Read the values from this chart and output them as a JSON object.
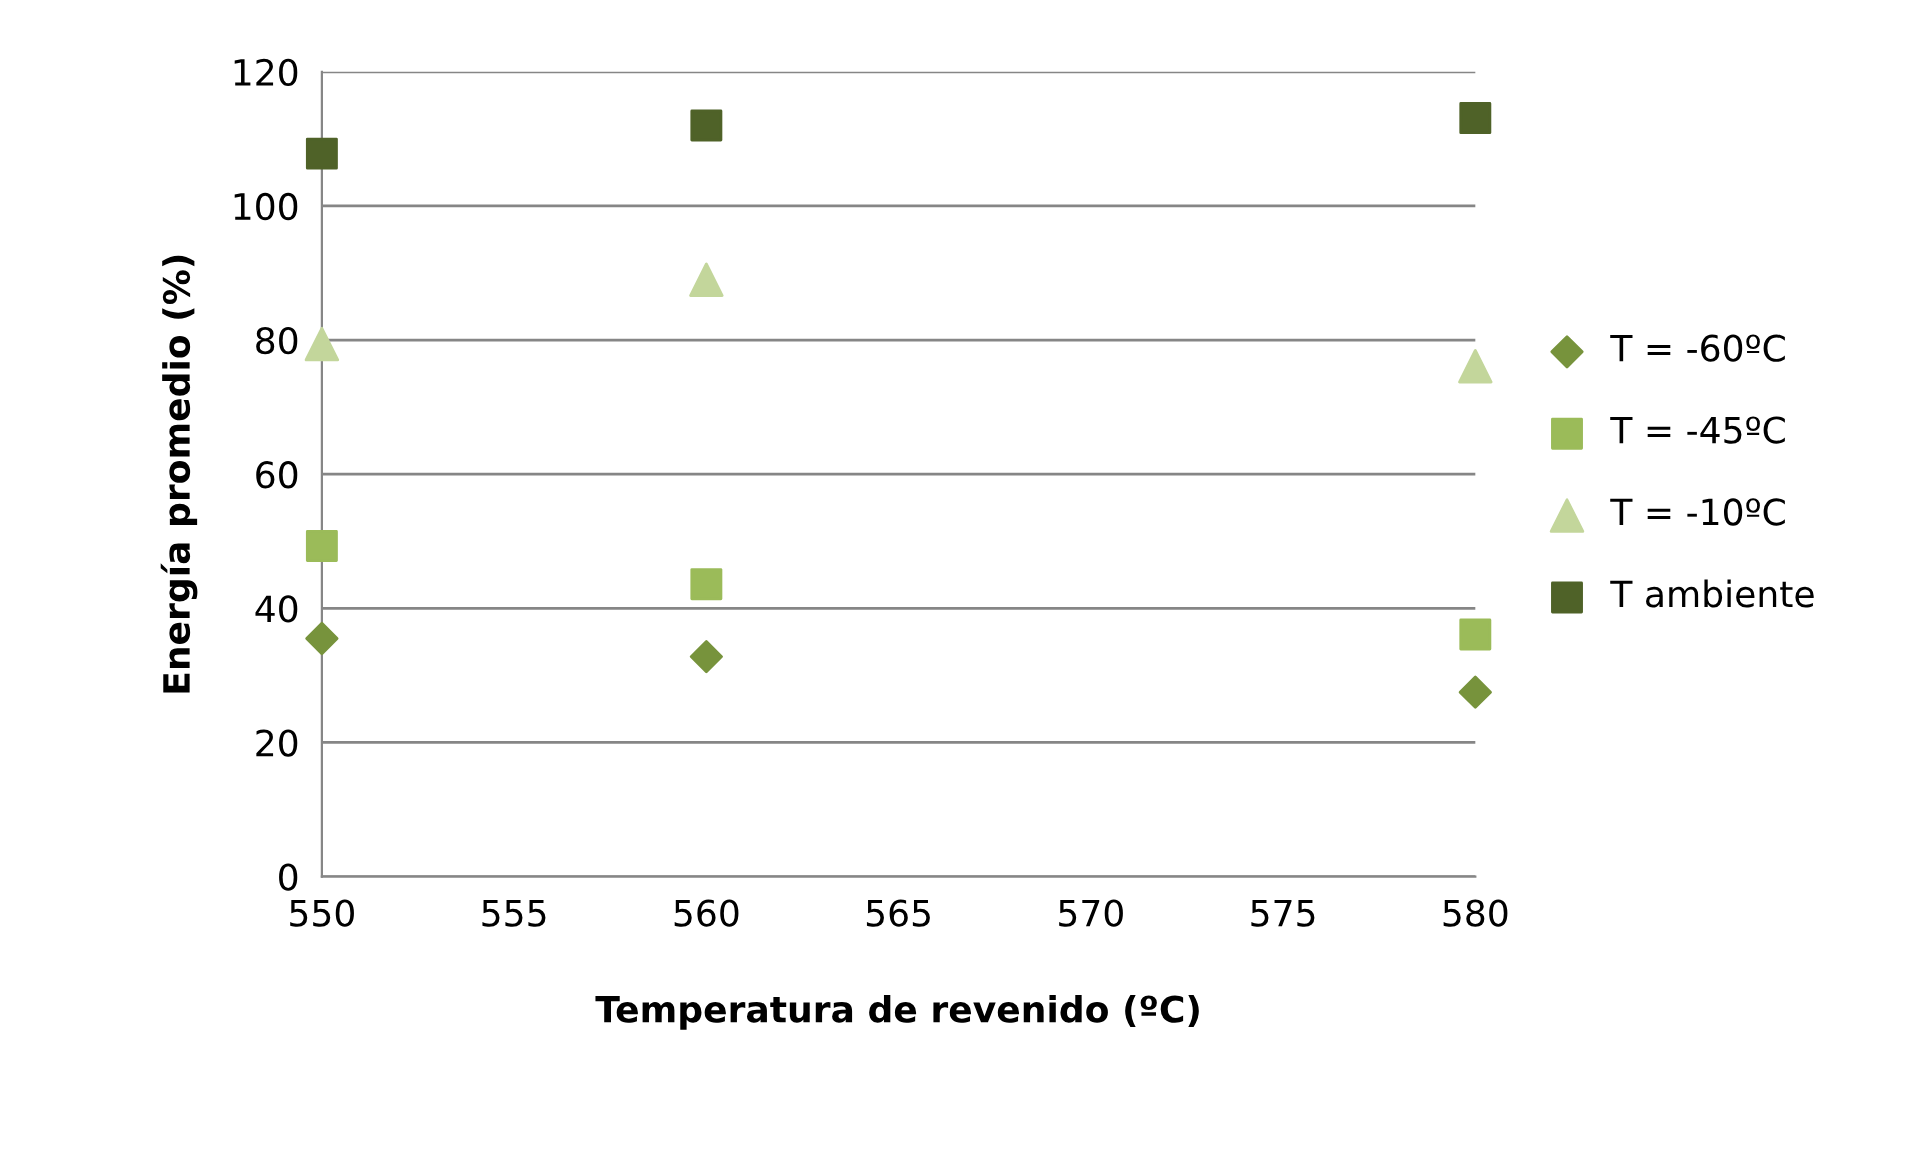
{
  "chart_data": {
    "type": "scatter",
    "xlabel": "Temperatura de revenido (ºC)",
    "ylabel": "Energía promedio (%)",
    "x": [
      550,
      560,
      580
    ],
    "series": [
      {
        "name": "T = -60ºC",
        "color": "#77933c",
        "marker": "diamond",
        "values": [
          35.5,
          32.8,
          27.5
        ]
      },
      {
        "name": "T = -45ºC",
        "color": "#9bbb59",
        "marker": "square",
        "values": [
          49.3,
          43.6,
          36.1
        ]
      },
      {
        "name": "T = -10ºC",
        "color": "#c3d69b",
        "marker": "triangle",
        "values": [
          79.4,
          89,
          76.1
        ]
      },
      {
        "name": "T ambiente",
        "color": "#4f6228",
        "marker": "square",
        "values": [
          107.8,
          112,
          113.1
        ]
      }
    ],
    "xlim": [
      550,
      580
    ],
    "xticks": [
      550,
      555,
      560,
      565,
      570,
      575,
      580
    ],
    "ylim": [
      0,
      120
    ],
    "yticks": [
      0,
      20,
      40,
      60,
      80,
      100,
      120
    ],
    "grid": "y",
    "legend": "right"
  }
}
